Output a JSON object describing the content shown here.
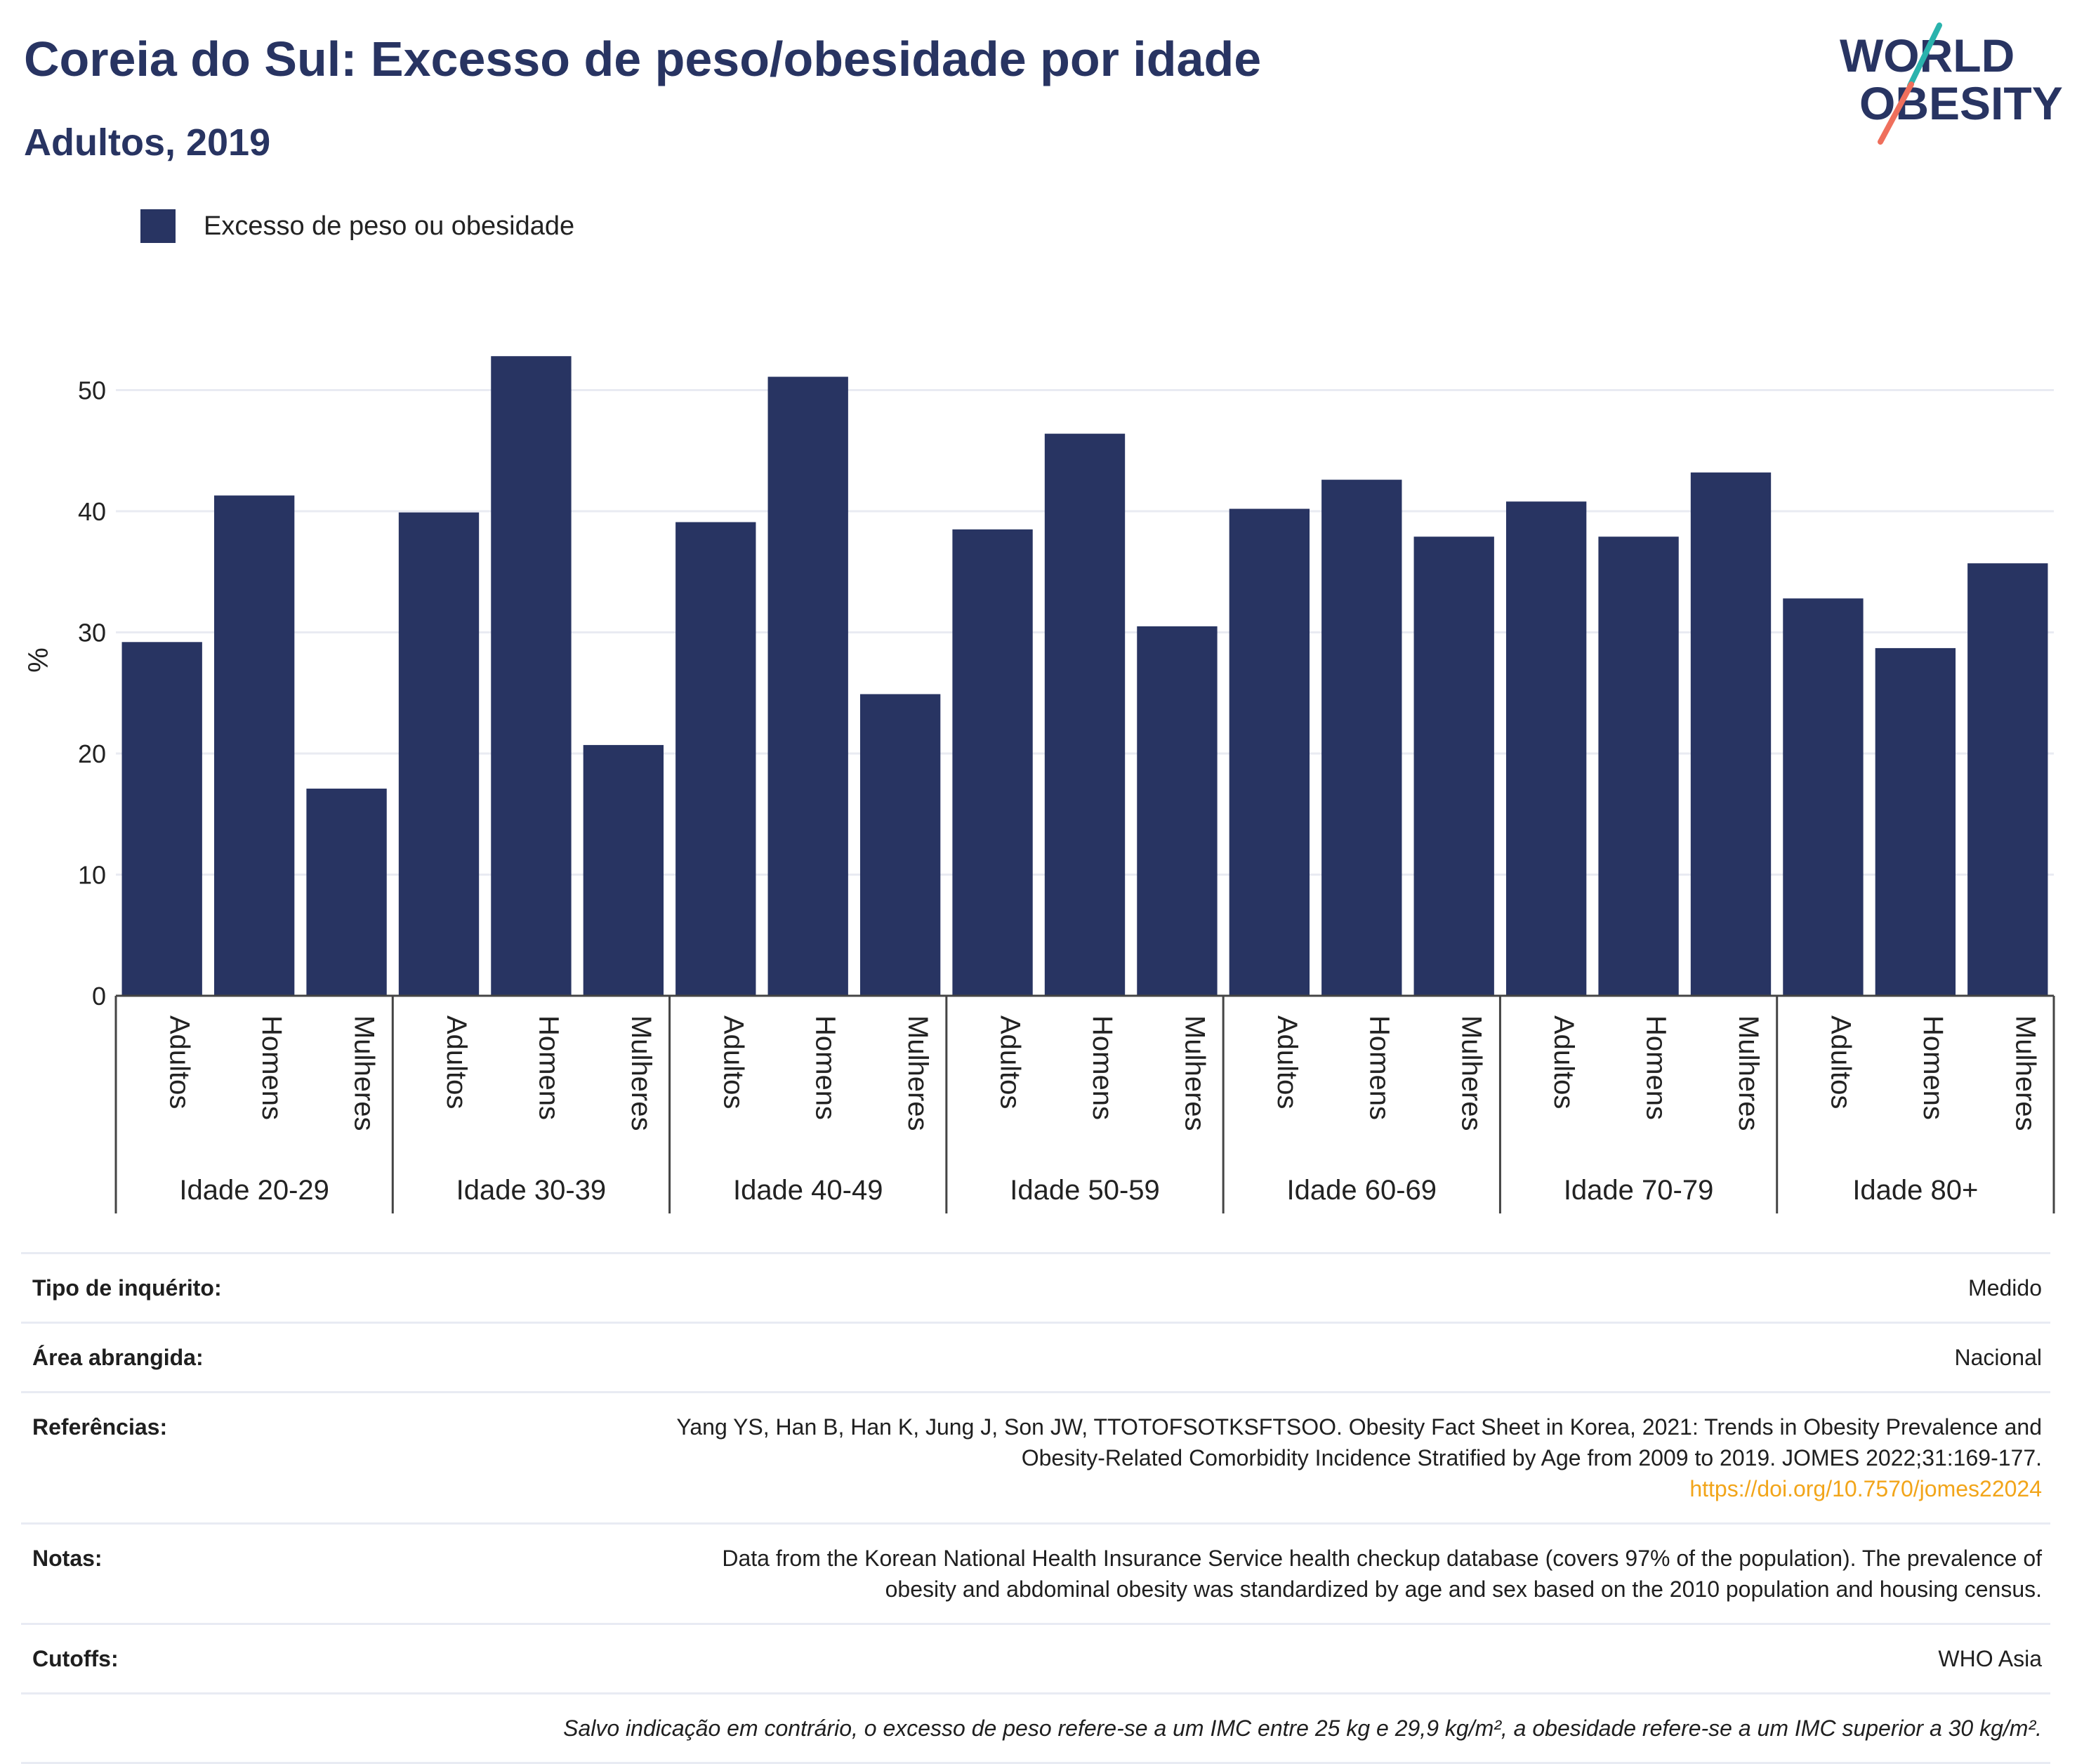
{
  "title": "Coreia do Sul: Excesso de peso/obesidade por idade",
  "subtitle": "Adultos, 2019",
  "logo": {
    "line1": "WORLD",
    "line2": "OBESITY"
  },
  "colors": {
    "bar": "#283462",
    "title": "#283462",
    "link": "#f2a51a",
    "grid": "#e9ebf2"
  },
  "chart_data": {
    "type": "bar",
    "ylabel": "%",
    "ylim": [
      0,
      55
    ],
    "yticks": [
      0,
      10,
      20,
      30,
      40,
      50
    ],
    "grid": true,
    "legend_position": "top-left",
    "series": [
      {
        "name": "Excesso de peso ou obesidade",
        "values": [
          29.2,
          41.3,
          17.1,
          39.9,
          52.8,
          20.7,
          39.1,
          51.1,
          24.9,
          38.5,
          46.4,
          30.5,
          40.2,
          42.6,
          37.9,
          40.8,
          37.9,
          43.2,
          32.8,
          28.7,
          35.7
        ]
      }
    ],
    "groups": [
      {
        "label": "Idade 20-29",
        "categories": [
          "Adultos",
          "Homens",
          "Mulheres"
        ]
      },
      {
        "label": "Idade 30-39",
        "categories": [
          "Adultos",
          "Homens",
          "Mulheres"
        ]
      },
      {
        "label": "Idade 40-49",
        "categories": [
          "Adultos",
          "Homens",
          "Mulheres"
        ]
      },
      {
        "label": "Idade 50-59",
        "categories": [
          "Adultos",
          "Homens",
          "Mulheres"
        ]
      },
      {
        "label": "Idade 60-69",
        "categories": [
          "Adultos",
          "Homens",
          "Mulheres"
        ]
      },
      {
        "label": "Idade 70-79",
        "categories": [
          "Adultos",
          "Homens",
          "Mulheres"
        ]
      },
      {
        "label": "Idade 80+",
        "categories": [
          "Adultos",
          "Homens",
          "Mulheres"
        ]
      }
    ]
  },
  "info": {
    "survey_type": {
      "label": "Tipo de inquérito:",
      "value": "Medido"
    },
    "coverage": {
      "label": "Área abrangida:",
      "value": "Nacional"
    },
    "references": {
      "label": "Referências:",
      "line1": "Yang YS, Han B, Han K, Jung J, Son JW, TTOTOFSOTKSFTSOO. Obesity Fact Sheet in Korea, 2021: Trends in Obesity Prevalence and",
      "line2": "Obesity-Related Comorbidity Incidence Stratified by Age from 2009 to 2019. JOMES 2022;31:169-177.",
      "link": "https://doi.org/10.7570/jomes22024"
    },
    "notes": {
      "label": "Notas:",
      "line1": "Data from the Korean National Health Insurance Service health checkup database (covers 97% of the population). The prevalence of",
      "line2": "obesity and abdominal obesity was standardized by age and sex based on the 2010 population and housing census."
    },
    "cutoffs": {
      "label": "Cutoffs:",
      "value": "WHO Asia"
    },
    "footnote": "Salvo indicação em contrário, o excesso de peso refere-se a um IMC entre 25 kg e 29,9 kg/m², a obesidade refere-se a um IMC superior a 30 kg/m²."
  }
}
